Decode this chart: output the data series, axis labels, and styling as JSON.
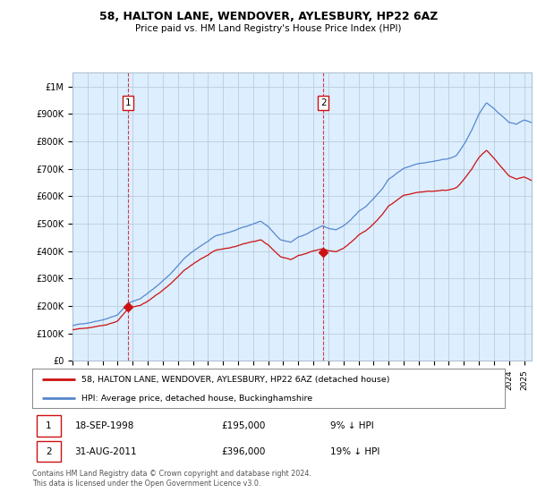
{
  "title": "58, HALTON LANE, WENDOVER, AYLESBURY, HP22 6AZ",
  "subtitle": "Price paid vs. HM Land Registry's House Price Index (HPI)",
  "background_color": "#ffffff",
  "chart_bg_color": "#ddeeff",
  "grid_color": "#bbccdd",
  "hpi_color": "#5588cc",
  "price_color": "#cc1111",
  "sale1_x": 1998.71,
  "sale1_y": 195000,
  "sale2_x": 2011.66,
  "sale2_y": 396000,
  "legend_line1": "58, HALTON LANE, WENDOVER, AYLESBURY, HP22 6AZ (detached house)",
  "legend_line2": "HPI: Average price, detached house, Buckinghamshire",
  "footer": "Contains HM Land Registry data © Crown copyright and database right 2024.\nThis data is licensed under the Open Government Licence v3.0.",
  "ylim": [
    0,
    1050000
  ],
  "xlim_start": 1995.0,
  "xlim_end": 2025.5
}
